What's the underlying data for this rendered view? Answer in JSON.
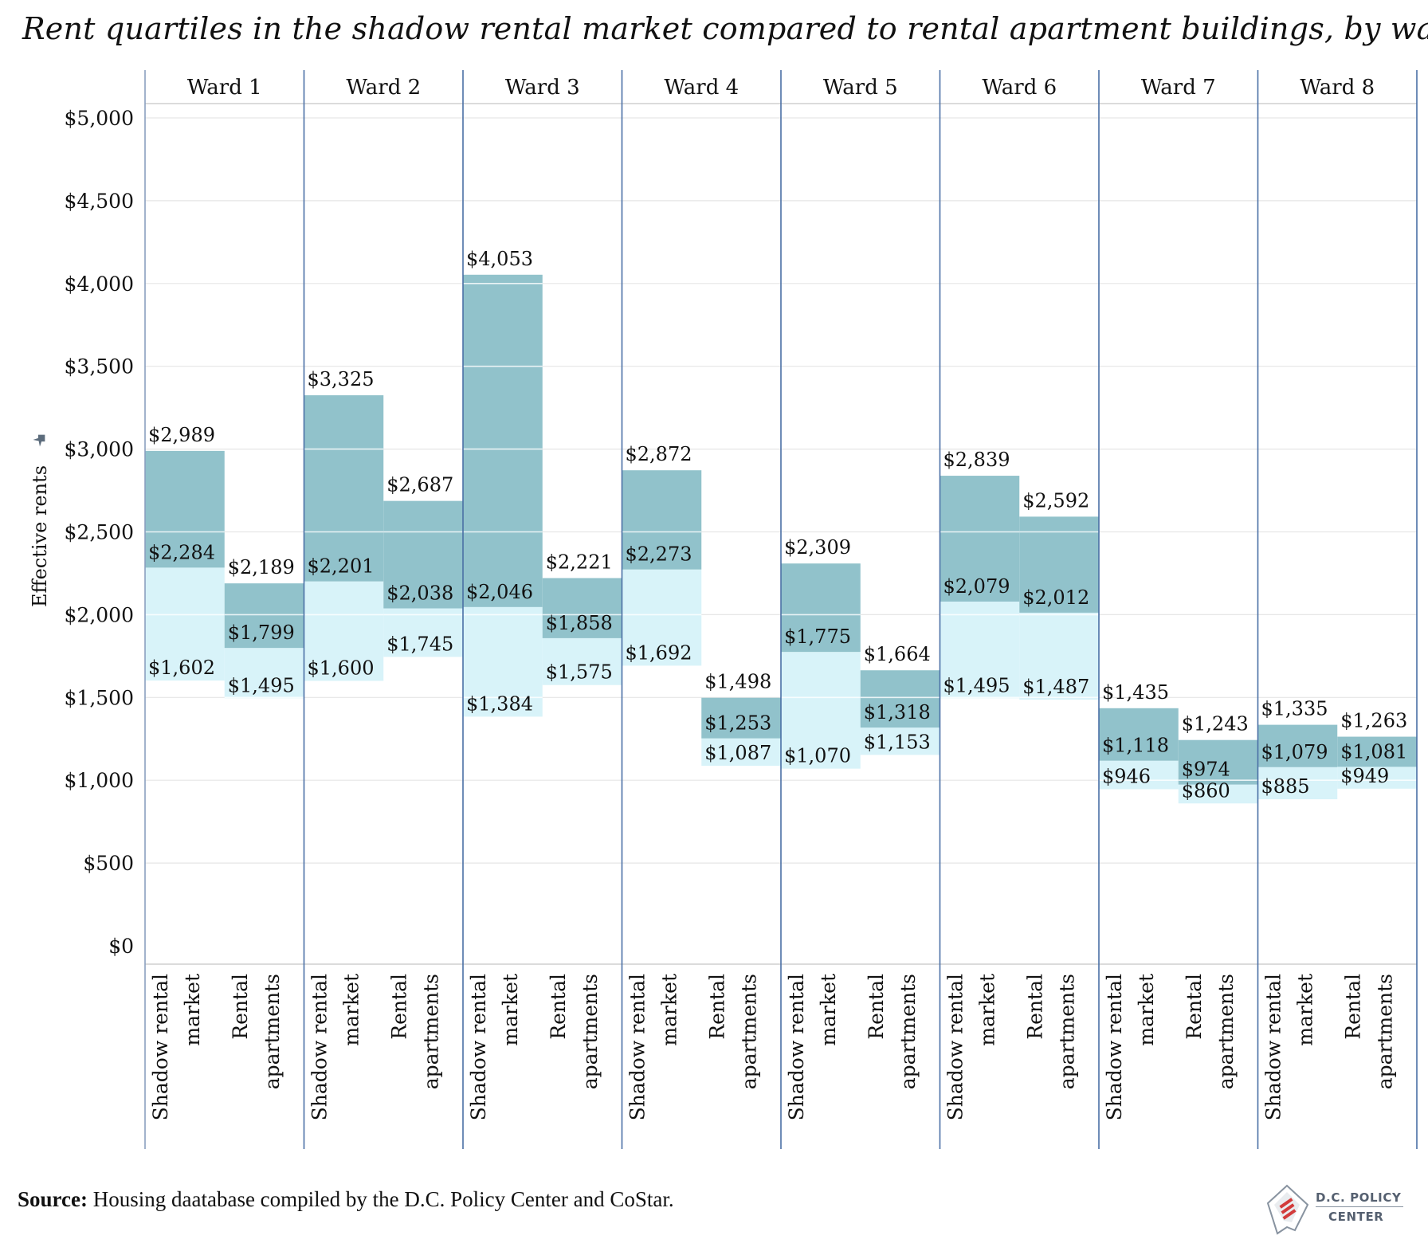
{
  "chart_data": {
    "type": "bar",
    "title": "Rent quartiles in the shadow rental market compared to rental apartment buildings, by ward",
    "ylabel": "Effective rents",
    "ylim": [
      0,
      5000
    ],
    "yticks": [
      0,
      500,
      1000,
      1500,
      2000,
      2500,
      3000,
      3500,
      4000,
      4500,
      5000
    ],
    "ytick_labels": [
      "$0",
      "$500",
      "$1,000",
      "$1,500",
      "$2,000",
      "$2,500",
      "$3,000",
      "$3,500",
      "$4,000",
      "$4,500",
      "$5,000"
    ],
    "categories": [
      "Shadow rental market",
      "Rental apartments"
    ],
    "category_labels": [
      [
        "Shadow rental",
        "market"
      ],
      [
        "Rental",
        "apartments"
      ]
    ],
    "grid": true,
    "colors": {
      "upper_band": "#91c2cb",
      "lower_band": "#d8f3f9",
      "divider": "#4a6fa5",
      "grid": "#e6e6e6"
    },
    "wards": [
      {
        "name": "Ward 1",
        "bars": [
          {
            "q1": 1602,
            "median": 2284,
            "q3": 2989,
            "labels": [
              "$1,602",
              "$2,284",
              "$2,989"
            ]
          },
          {
            "q1": 1495,
            "median": 1799,
            "q3": 2189,
            "labels": [
              "$1,495",
              "$1,799",
              "$2,189"
            ]
          }
        ]
      },
      {
        "name": "Ward 2",
        "bars": [
          {
            "q1": 1600,
            "median": 2201,
            "q3": 3325,
            "labels": [
              "$1,600",
              "$2,201",
              "$3,325"
            ]
          },
          {
            "q1": 1745,
            "median": 2038,
            "q3": 2687,
            "labels": [
              "$1,745",
              "$2,038",
              "$2,687"
            ]
          }
        ]
      },
      {
        "name": "Ward 3",
        "bars": [
          {
            "q1": 1384,
            "median": 2046,
            "q3": 4053,
            "labels": [
              "$1,384",
              "$2,046",
              "$4,053"
            ]
          },
          {
            "q1": 1575,
            "median": 1858,
            "q3": 2221,
            "labels": [
              "$1,575",
              "$1,858",
              "$2,221"
            ]
          }
        ]
      },
      {
        "name": "Ward 4",
        "bars": [
          {
            "q1": 1692,
            "median": 2273,
            "q3": 2872,
            "labels": [
              "$1,692",
              "$2,273",
              "$2,872"
            ]
          },
          {
            "q1": 1087,
            "median": 1253,
            "q3": 1498,
            "labels": [
              "$1,087",
              "$1,253",
              "$1,498"
            ]
          }
        ]
      },
      {
        "name": "Ward 5",
        "bars": [
          {
            "q1": 1070,
            "median": 1775,
            "q3": 2309,
            "labels": [
              "$1,070",
              "$1,775",
              "$2,309"
            ]
          },
          {
            "q1": 1153,
            "median": 1318,
            "q3": 1664,
            "labels": [
              "$1,153",
              "$1,318",
              "$1,664"
            ]
          }
        ]
      },
      {
        "name": "Ward 6",
        "bars": [
          {
            "q1": 1495,
            "median": 2079,
            "q3": 2839,
            "labels": [
              "$1,495",
              "$2,079",
              "$2,839"
            ]
          },
          {
            "q1": 1487,
            "median": 2012,
            "q3": 2592,
            "labels": [
              "$1,487",
              "$2,012",
              "$2,592"
            ]
          }
        ]
      },
      {
        "name": "Ward 7",
        "bars": [
          {
            "q1": 946,
            "median": 1118,
            "q3": 1435,
            "labels": [
              "$946",
              "$1,118",
              "$1,435"
            ]
          },
          {
            "q1": 860,
            "median": 974,
            "q3": 1243,
            "labels": [
              "$860",
              "$974",
              "$1,243"
            ]
          }
        ]
      },
      {
        "name": "Ward 8",
        "bars": [
          {
            "q1": 885,
            "median": 1079,
            "q3": 1335,
            "labels": [
              "$885",
              "$1,079",
              "$1,335"
            ]
          },
          {
            "q1": 949,
            "median": 1081,
            "q3": 1263,
            "labels": [
              "$949",
              "$1,081",
              "$1,263"
            ]
          }
        ]
      }
    ]
  },
  "source": {
    "label": "Source:",
    "text": "Housing daatabase compiled by the D.C. Policy Center and CoStar."
  },
  "logo": {
    "line1": "D.C. POLICY",
    "line2": "CENTER",
    "icon": "dc-map-flag-icon"
  }
}
